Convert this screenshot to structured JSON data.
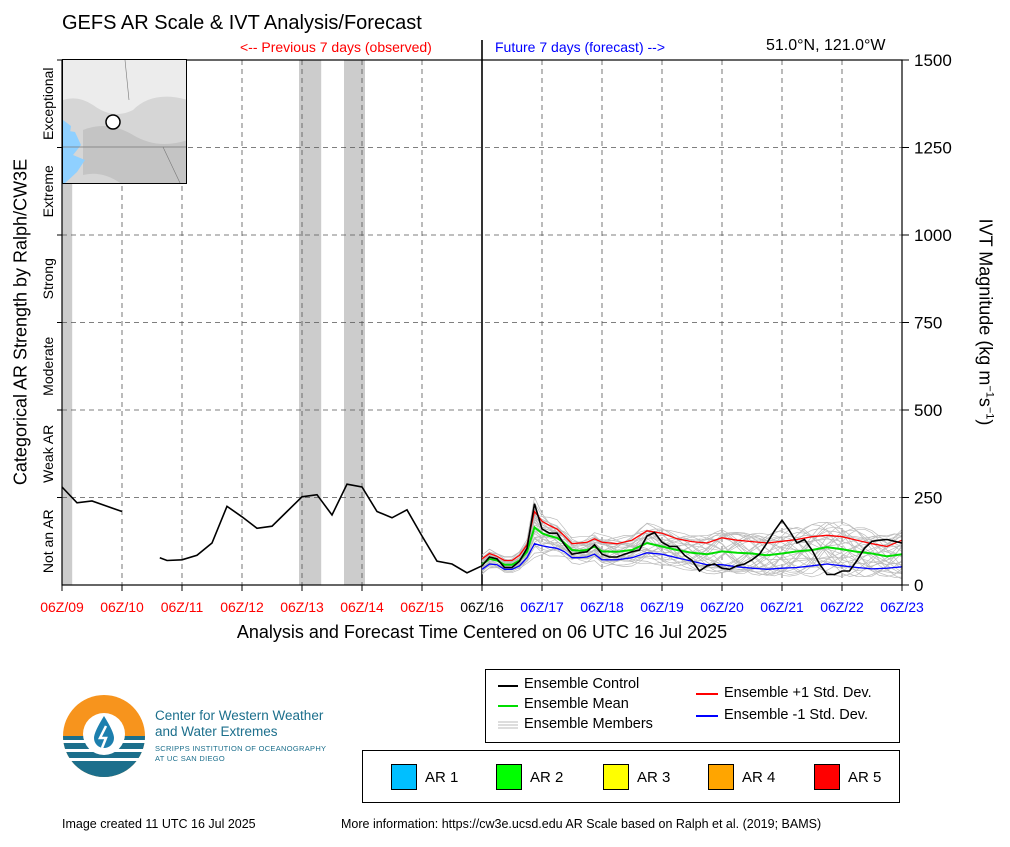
{
  "header": {
    "title": "GEFS AR Scale & IVT Analysis/Forecast",
    "previous_label": "<-- Previous 7 days (observed)",
    "future_label": "Future 7 days (forecast) -->",
    "location": "51.0°N, 121.0°W"
  },
  "colors": {
    "observed": "#ff0000",
    "forecast": "#0000ff",
    "control": "#000000",
    "mean": "#00dd00",
    "plus_sd": "#ff0000",
    "minus_sd": "#0000ff",
    "members": "#bbbbbb",
    "ar_shade": "#cccccc"
  },
  "axes": {
    "left_label": "Categorical AR Strength by Ralph/CW3E",
    "right_label_main": "IVT Magnitude (kg m",
    "right_label_sup1": "−1",
    "right_label_mid": "s",
    "right_label_sup2": "−1",
    "right_label_end": ")",
    "x_label": "Analysis and Forecast Time Centered on 06 UTC 16 Jul 2025"
  },
  "footer": {
    "created": "Image created 11 UTC 16 Jul 2025",
    "more_info": "More information: https://cw3e.ucsd.edu AR Scale based on Ralph et al. (2019; BAMS)"
  },
  "logo": {
    "line1": "Center for Western Weather",
    "line2": "and Water Extremes",
    "line3": "SCRIPPS INSTITUTION OF OCEANOGRAPHY",
    "line4": "AT UC SAN DIEGO"
  },
  "legend": {
    "control": "Ensemble Control",
    "mean": "Ensemble Mean",
    "members": "Ensemble Members",
    "plus_sd": "Ensemble +1 Std. Dev.",
    "minus_sd": "Ensemble -1 Std. Dev."
  },
  "ar_legend": [
    {
      "label": "AR 1",
      "color": "#00bfff"
    },
    {
      "label": "AR 2",
      "color": "#00ff00"
    },
    {
      "label": "AR 3",
      "color": "#ffff00"
    },
    {
      "label": "AR 4",
      "color": "#ffa500"
    },
    {
      "label": "AR 5",
      "color": "#ff0000"
    }
  ],
  "chart_data": {
    "type": "line",
    "xlim": [
      -7,
      7
    ],
    "ylim": [
      0,
      1500
    ],
    "x_unit": "days from 06Z/16",
    "y_ticks": [
      0,
      250,
      500,
      750,
      1000,
      1250,
      1500
    ],
    "categories": [
      {
        "label": "Not an AR",
        "from": 0,
        "to": 250
      },
      {
        "label": "Weak AR",
        "from": 250,
        "to": 500
      },
      {
        "label": "Moderate",
        "from": 500,
        "to": 750
      },
      {
        "label": "Strong",
        "from": 750,
        "to": 1000
      },
      {
        "label": "Extreme",
        "from": 1000,
        "to": 1250
      },
      {
        "label": "Exceptional",
        "from": 1250,
        "to": 1500
      }
    ],
    "x_ticks": [
      {
        "x": -7,
        "label": "06Z/09",
        "period": "observed"
      },
      {
        "x": -6,
        "label": "06Z/10",
        "period": "observed"
      },
      {
        "x": -5,
        "label": "06Z/11",
        "period": "observed"
      },
      {
        "x": -4,
        "label": "06Z/12",
        "period": "observed"
      },
      {
        "x": -3,
        "label": "06Z/13",
        "period": "observed"
      },
      {
        "x": -2,
        "label": "06Z/14",
        "period": "observed"
      },
      {
        "x": -1,
        "label": "06Z/15",
        "period": "observed"
      },
      {
        "x": 0,
        "label": "06Z/16",
        "period": "now"
      },
      {
        "x": 1,
        "label": "06Z/17",
        "period": "forecast"
      },
      {
        "x": 2,
        "label": "06Z/18",
        "period": "forecast"
      },
      {
        "x": 3,
        "label": "06Z/19",
        "period": "forecast"
      },
      {
        "x": 4,
        "label": "06Z/20",
        "period": "forecast"
      },
      {
        "x": 5,
        "label": "06Z/21",
        "period": "forecast"
      },
      {
        "x": 6,
        "label": "06Z/22",
        "period": "forecast"
      },
      {
        "x": 7,
        "label": "06Z/23",
        "period": "forecast"
      }
    ],
    "ar_periods": [
      [
        -7,
        -6.83
      ],
      [
        -3.05,
        -2.68
      ],
      [
        -2.3,
        -1.95
      ]
    ],
    "observed": [
      [
        [
          -7,
          280
        ],
        [
          -6.75,
          235
        ],
        [
          -6.5,
          240
        ],
        [
          -6.25,
          225
        ],
        [
          -6,
          210
        ]
      ],
      [
        [
          -5.37,
          78
        ],
        [
          -5.25,
          70
        ],
        [
          -5,
          72
        ],
        [
          -4.75,
          85
        ],
        [
          -4.5,
          120
        ],
        [
          -4.25,
          225
        ],
        [
          -4,
          195
        ],
        [
          -3.75,
          162
        ],
        [
          -3.5,
          168
        ],
        [
          -3.25,
          210
        ],
        [
          -3,
          252
        ],
        [
          -2.75,
          258
        ],
        [
          -2.5,
          200
        ],
        [
          -2.25,
          288
        ],
        [
          -2,
          280
        ],
        [
          -1.75,
          210
        ],
        [
          -1.5,
          192
        ],
        [
          -1.25,
          215
        ],
        [
          -1,
          140
        ],
        [
          -0.75,
          68
        ],
        [
          -0.5,
          60
        ],
        [
          -0.25,
          35
        ],
        [
          0,
          55
        ]
      ]
    ],
    "series": [
      {
        "name": "Ensemble Control",
        "key": "control",
        "points": [
          [
            0,
            55
          ],
          [
            0.125,
            80
          ],
          [
            0.25,
            75
          ],
          [
            0.375,
            50
          ],
          [
            0.5,
            50
          ],
          [
            0.625,
            68
          ],
          [
            0.75,
            105
          ],
          [
            0.875,
            232
          ],
          [
            1,
            160
          ],
          [
            1.125,
            148
          ],
          [
            1.25,
            148
          ],
          [
            1.375,
            115
          ],
          [
            1.5,
            88
          ],
          [
            1.625,
            92
          ],
          [
            1.75,
            95
          ],
          [
            1.875,
            115
          ],
          [
            2,
            88
          ],
          [
            2.125,
            80
          ],
          [
            2.25,
            80
          ],
          [
            2.375,
            88
          ],
          [
            2.5,
            95
          ],
          [
            2.625,
            100
          ],
          [
            2.75,
            140
          ],
          [
            2.875,
            150
          ],
          [
            3,
            122
          ],
          [
            3.125,
            110
          ],
          [
            3.25,
            110
          ],
          [
            3.375,
            85
          ],
          [
            3.5,
            70
          ],
          [
            3.625,
            40
          ],
          [
            3.75,
            55
          ],
          [
            3.875,
            60
          ],
          [
            4,
            48
          ],
          [
            4.125,
            45
          ],
          [
            4.25,
            55
          ],
          [
            4.375,
            60
          ],
          [
            4.5,
            72
          ],
          [
            4.625,
            88
          ],
          [
            4.75,
            120
          ],
          [
            4.875,
            155
          ],
          [
            5,
            185
          ],
          [
            5.125,
            155
          ],
          [
            5.25,
            120
          ],
          [
            5.375,
            130
          ],
          [
            5.5,
            100
          ],
          [
            5.625,
            60
          ],
          [
            5.75,
            30
          ],
          [
            5.875,
            30
          ],
          [
            6,
            40
          ],
          [
            6.125,
            40
          ],
          [
            6.25,
            70
          ],
          [
            6.375,
            105
          ],
          [
            6.5,
            125
          ],
          [
            6.625,
            128
          ],
          [
            6.75,
            130
          ],
          [
            6.875,
            125
          ],
          [
            7,
            120
          ]
        ]
      },
      {
        "name": "Ensemble Mean",
        "key": "mean",
        "points": [
          [
            0,
            58
          ],
          [
            0.125,
            75
          ],
          [
            0.25,
            70
          ],
          [
            0.375,
            58
          ],
          [
            0.5,
            58
          ],
          [
            0.625,
            70
          ],
          [
            0.75,
            95
          ],
          [
            0.875,
            165
          ],
          [
            1,
            148
          ],
          [
            1.125,
            140
          ],
          [
            1.25,
            135
          ],
          [
            1.375,
            120
          ],
          [
            1.5,
            100
          ],
          [
            1.625,
            98
          ],
          [
            1.75,
            100
          ],
          [
            1.875,
            110
          ],
          [
            2,
            96
          ],
          [
            2.25,
            95
          ],
          [
            2.5,
            100
          ],
          [
            2.75,
            120
          ],
          [
            3,
            110
          ],
          [
            3.25,
            100
          ],
          [
            3.5,
            92
          ],
          [
            3.75,
            88
          ],
          [
            4,
            96
          ],
          [
            4.25,
            92
          ],
          [
            4.5,
            90
          ],
          [
            4.75,
            85
          ],
          [
            5,
            90
          ],
          [
            5.25,
            96
          ],
          [
            5.5,
            100
          ],
          [
            5.75,
            108
          ],
          [
            6,
            102
          ],
          [
            6.25,
            95
          ],
          [
            6.5,
            90
          ],
          [
            6.75,
            82
          ],
          [
            7,
            88
          ]
        ]
      },
      {
        "name": "Ensemble +1 Std. Dev.",
        "key": "plus_sd",
        "points": [
          [
            0,
            75
          ],
          [
            0.125,
            90
          ],
          [
            0.25,
            82
          ],
          [
            0.375,
            70
          ],
          [
            0.5,
            70
          ],
          [
            0.625,
            85
          ],
          [
            0.75,
            115
          ],
          [
            0.875,
            210
          ],
          [
            1,
            182
          ],
          [
            1.125,
            170
          ],
          [
            1.25,
            160
          ],
          [
            1.375,
            140
          ],
          [
            1.5,
            118
          ],
          [
            1.625,
            120
          ],
          [
            1.75,
            122
          ],
          [
            1.875,
            132
          ],
          [
            2,
            122
          ],
          [
            2.25,
            118
          ],
          [
            2.5,
            128
          ],
          [
            2.75,
            155
          ],
          [
            3,
            148
          ],
          [
            3.25,
            132
          ],
          [
            3.5,
            124
          ],
          [
            3.75,
            120
          ],
          [
            4,
            135
          ],
          [
            4.25,
            128
          ],
          [
            4.5,
            124
          ],
          [
            4.75,
            120
          ],
          [
            5,
            125
          ],
          [
            5.25,
            130
          ],
          [
            5.5,
            138
          ],
          [
            5.75,
            142
          ],
          [
            6,
            138
          ],
          [
            6.25,
            128
          ],
          [
            6.5,
            118
          ],
          [
            6.75,
            110
          ],
          [
            7,
            128
          ]
        ]
      },
      {
        "name": "Ensemble -1 Std. Dev.",
        "key": "minus_sd",
        "points": [
          [
            0,
            45
          ],
          [
            0.125,
            60
          ],
          [
            0.25,
            58
          ],
          [
            0.375,
            45
          ],
          [
            0.5,
            45
          ],
          [
            0.625,
            55
          ],
          [
            0.75,
            78
          ],
          [
            0.875,
            118
          ],
          [
            1,
            112
          ],
          [
            1.125,
            108
          ],
          [
            1.25,
            105
          ],
          [
            1.375,
            95
          ],
          [
            1.5,
            78
          ],
          [
            1.625,
            78
          ],
          [
            1.75,
            80
          ],
          [
            1.875,
            88
          ],
          [
            2,
            72
          ],
          [
            2.25,
            72
          ],
          [
            2.5,
            78
          ],
          [
            2.75,
            92
          ],
          [
            3,
            88
          ],
          [
            3.25,
            78
          ],
          [
            3.5,
            68
          ],
          [
            3.75,
            58
          ],
          [
            4,
            58
          ],
          [
            4.25,
            52
          ],
          [
            4.5,
            48
          ],
          [
            4.75,
            45
          ],
          [
            5,
            48
          ],
          [
            5.25,
            50
          ],
          [
            5.5,
            55
          ],
          [
            5.75,
            60
          ],
          [
            6,
            55
          ],
          [
            6.25,
            50
          ],
          [
            6.5,
            46
          ],
          [
            6.75,
            48
          ],
          [
            7,
            52
          ]
        ]
      }
    ]
  }
}
